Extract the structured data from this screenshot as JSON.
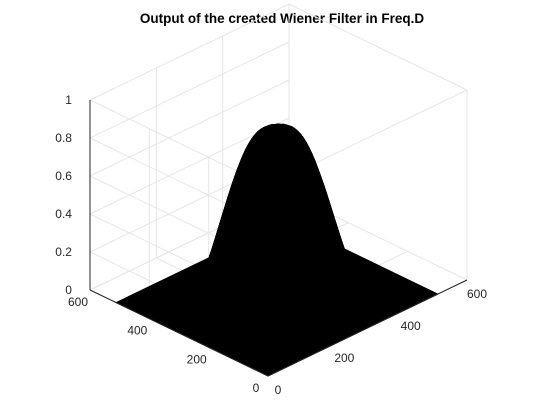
{
  "chart_data": {
    "type": "surface",
    "title": "Output of the created Wiener Filter in Freq.D",
    "xlabel": "",
    "ylabel": "",
    "zlabel": "",
    "xlim": [
      0,
      600
    ],
    "ylim": [
      0,
      600
    ],
    "zlim": [
      0,
      1
    ],
    "x_ticks": [
      0,
      200,
      400,
      600
    ],
    "y_ticks": [
      0,
      200,
      400,
      600
    ],
    "z_ticks": [
      0,
      0.2,
      0.4,
      0.6,
      0.8,
      1
    ],
    "x_tick_labels": [
      "0",
      "200",
      "400",
      "600"
    ],
    "y_tick_labels": [
      "0",
      "200",
      "400",
      "600"
    ],
    "z_tick_labels": [
      "0",
      "0.2",
      "0.4",
      "0.6",
      "0.8",
      "1"
    ],
    "grid": true,
    "data_extent": {
      "x": [
        0,
        512
      ],
      "y": [
        0,
        512
      ]
    },
    "surface_profile": {
      "description_free": true,
      "center": [
        256,
        256
      ],
      "peak": 0.88,
      "flat_top_radius": 30,
      "falloff_radius": 200,
      "outer_value": 0
    },
    "surface_color": "#000000"
  }
}
